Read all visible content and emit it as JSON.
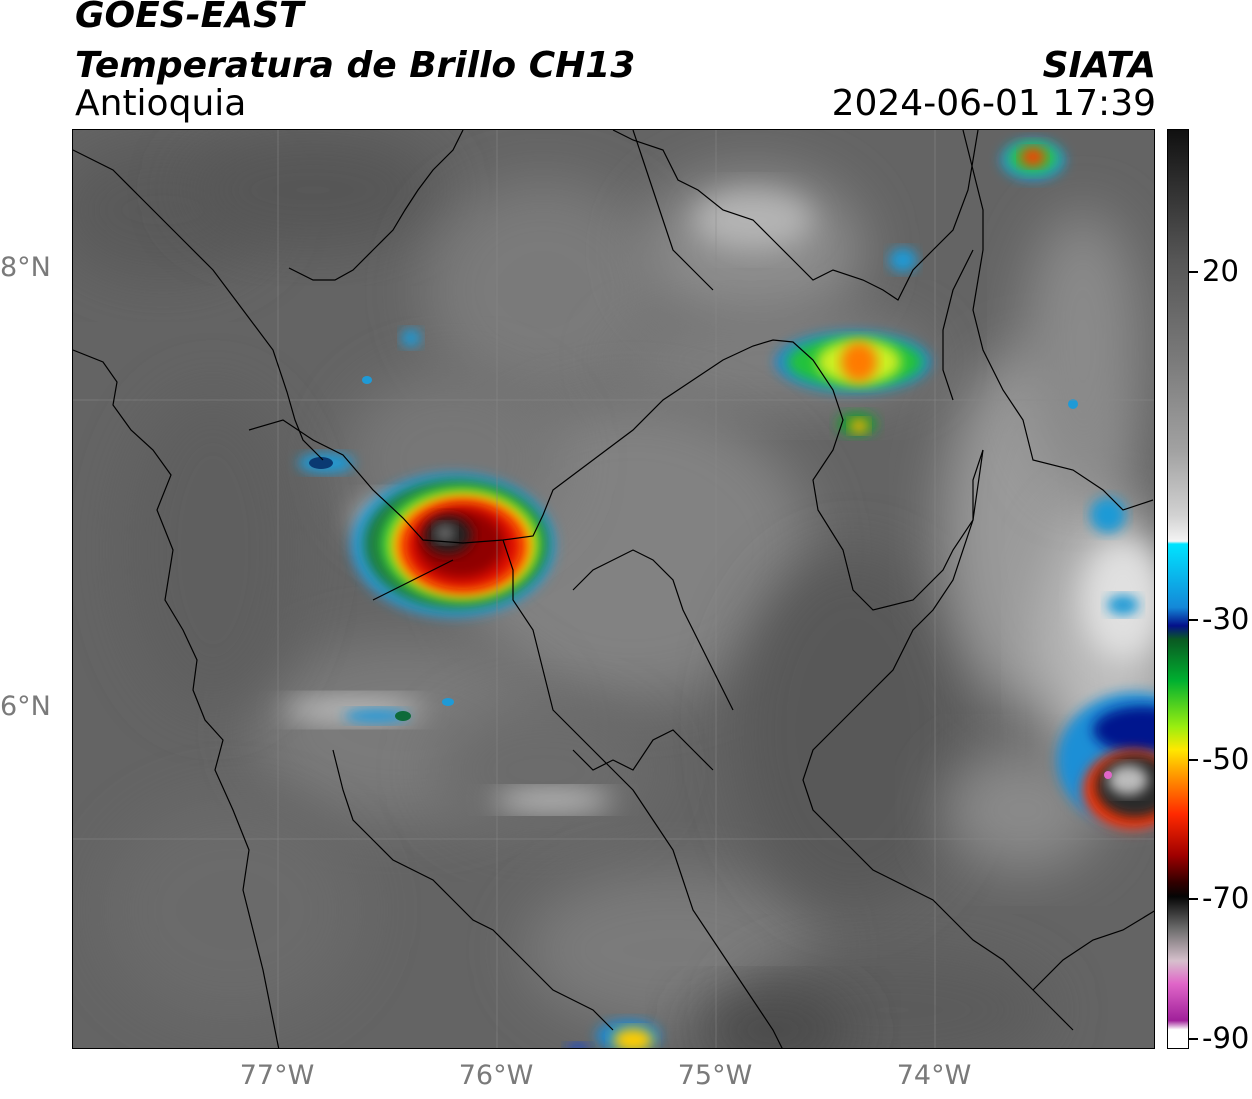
{
  "header": {
    "title_line1": "GOES-EAST",
    "title_line2": "Temperatura de Brillo CH13",
    "region": "Antioquia",
    "agency": "SIATA",
    "timestamp": "2024-06-01 17:39"
  },
  "map": {
    "lat_labels": [
      "8°N",
      "6°N"
    ],
    "lon_labels": [
      "77°W",
      "76°W",
      "75°W",
      "74°W"
    ],
    "background_color": "#646464"
  },
  "colorbar": {
    "tick_labels": [
      "20",
      "-30",
      "-50",
      "-70",
      "-90"
    ],
    "stops": [
      {
        "t": 0.0,
        "c": "#101010"
      },
      {
        "t": 0.05,
        "c": "#2a2a2a"
      },
      {
        "t": 0.14,
        "c": "#555555"
      },
      {
        "t": 0.25,
        "c": "#7a7a7a"
      },
      {
        "t": 0.35,
        "c": "#a2a2a2"
      },
      {
        "t": 0.42,
        "c": "#d2d2d2"
      },
      {
        "t": 0.448,
        "c": "#f4f4f4"
      },
      {
        "t": 0.451,
        "c": "#00e4ff"
      },
      {
        "t": 0.52,
        "c": "#1488d8"
      },
      {
        "t": 0.54,
        "c": "#04108a"
      },
      {
        "t": 0.555,
        "c": "#0a5a22"
      },
      {
        "t": 0.6,
        "c": "#00b030"
      },
      {
        "t": 0.65,
        "c": "#9aee10"
      },
      {
        "t": 0.675,
        "c": "#ffe800"
      },
      {
        "t": 0.7,
        "c": "#ffa000"
      },
      {
        "t": 0.745,
        "c": "#ff2a00"
      },
      {
        "t": 0.79,
        "c": "#a00000"
      },
      {
        "t": 0.82,
        "c": "#300000"
      },
      {
        "t": 0.835,
        "c": "#050505"
      },
      {
        "t": 0.87,
        "c": "#6c6c6c"
      },
      {
        "t": 0.905,
        "c": "#d6c0cc"
      },
      {
        "t": 0.93,
        "c": "#e066c8"
      },
      {
        "t": 0.97,
        "c": "#a0209a"
      },
      {
        "t": 0.98,
        "c": "#ffffff"
      },
      {
        "t": 1.0,
        "c": "#ffffff"
      }
    ]
  }
}
